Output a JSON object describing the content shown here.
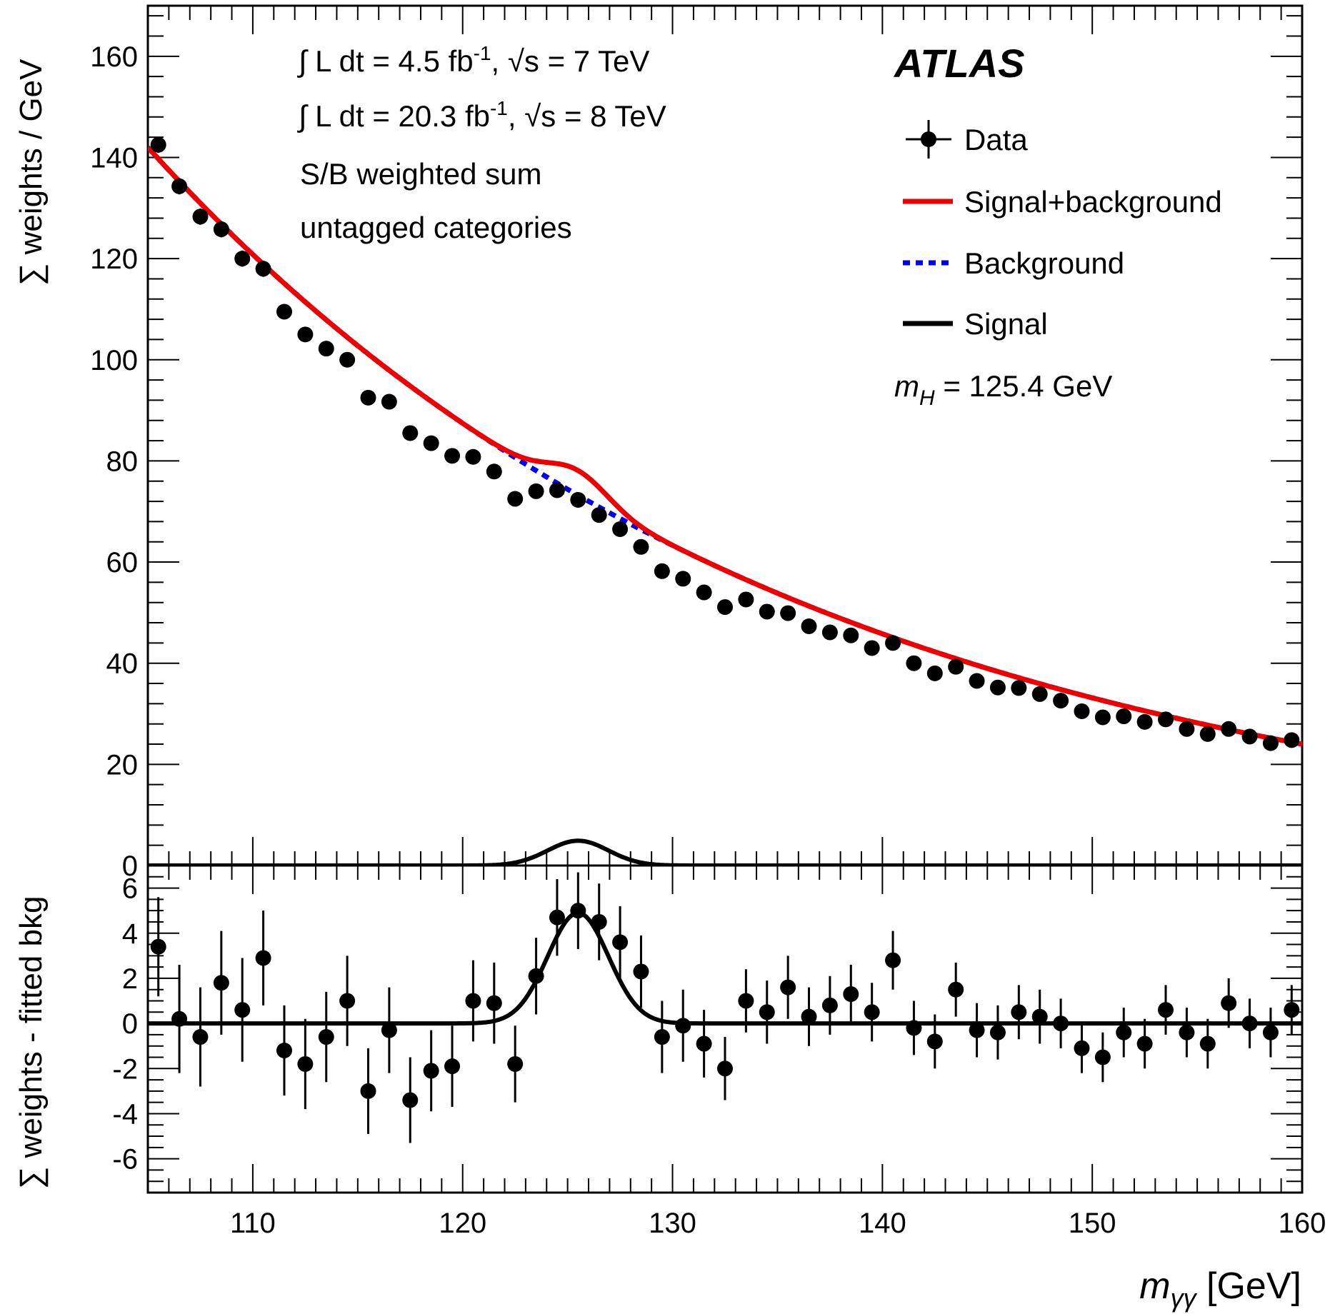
{
  "chart_data": {
    "type": "scatter",
    "experiment": "ATLAS",
    "annotations": [
      {
        "lumi": "∫ L dt = 4.5 fb",
        "sup": "-1",
        "energy": ", √s = 7 TeV"
      },
      {
        "lumi": "∫ L dt = 20.3 fb",
        "sup": "-1",
        "energy": ", √s = 8 TeV"
      }
    ],
    "note1": "S/B weighted sum",
    "note2": "untagged categories",
    "mass_label": "m",
    "mass_sub": "H",
    "mass_value": " = 125.4 GeV",
    "legend": [
      {
        "label": "Data",
        "style": "marker"
      },
      {
        "label": "Signal+background",
        "style": "solid",
        "color": "#ee0000"
      },
      {
        "label": "Background",
        "style": "dashed",
        "color": "#0000ee"
      },
      {
        "label": "Signal",
        "style": "solid",
        "color": "#000000"
      }
    ],
    "xlabel_main": "m",
    "xlabel_sub": "γγ",
    "xlabel_unit": " [GeV]",
    "xlim": [
      105,
      160
    ],
    "xticks": [
      110,
      120,
      130,
      140,
      150,
      160
    ],
    "top": {
      "ylabel": "∑ weights / GeV",
      "ylim": [
        0,
        170
      ],
      "yticks": [
        0,
        20,
        40,
        60,
        80,
        100,
        120,
        140,
        160
      ],
      "x": [
        105.5,
        106.5,
        107.5,
        108.5,
        109.5,
        110.5,
        111.5,
        112.5,
        113.5,
        114.5,
        115.5,
        116.5,
        117.5,
        118.5,
        119.5,
        120.5,
        121.5,
        122.5,
        123.5,
        124.5,
        125.5,
        126.5,
        127.5,
        128.5,
        129.5,
        130.5,
        131.5,
        132.5,
        133.5,
        134.5,
        135.5,
        136.5,
        137.5,
        138.5,
        139.5,
        140.5,
        141.5,
        142.5,
        143.5,
        144.5,
        145.5,
        146.5,
        147.5,
        148.5,
        149.5,
        150.5,
        151.5,
        152.5,
        153.5,
        154.5,
        155.5,
        156.5,
        157.5,
        158.5,
        159.5
      ],
      "y": [
        142.5,
        134.3,
        128.3,
        125.8,
        120,
        118,
        109.5,
        105,
        102.2,
        100,
        92.5,
        91.7,
        85.5,
        83.5,
        81,
        80.8,
        77.9,
        72.5,
        74,
        74.2,
        72.3,
        69.3,
        66.5,
        63,
        58.2,
        56.7,
        54,
        51.1,
        52.6,
        50.2,
        49.9,
        47.3,
        46.1,
        45.5,
        43,
        44,
        40,
        38,
        39.3,
        36.5,
        35.2,
        35.1,
        33.9,
        32.6,
        30.5,
        29.3,
        29.5,
        28.4,
        28.9,
        27,
        26,
        27,
        25.5,
        24.2,
        24.8
      ],
      "yerr": [
        1.6,
        1.6,
        1.6,
        1.6,
        1.6,
        1.6,
        1.5,
        1.5,
        1.5,
        1.5,
        1.5,
        1.5,
        1.4,
        1.4,
        1.4,
        1.4,
        1.4,
        1.4,
        1.4,
        1.4,
        1.4,
        1.4,
        1.3,
        1.3,
        1.3,
        1.3,
        1.3,
        1.3,
        1.3,
        1.3,
        1.3,
        1.3,
        1.2,
        1.2,
        1.2,
        1.2,
        1.2,
        1.2,
        1.2,
        1.2,
        1.2,
        1.2,
        1.2,
        1.2,
        1.2,
        1.1,
        1.1,
        1.1,
        1.1,
        1.1,
        1.1,
        1.1,
        1.1,
        1.1,
        1.1
      ],
      "background_model": {
        "form": "exponential",
        "anchors": [
          [
            105,
            142
          ],
          [
            160,
            24
          ]
        ]
      },
      "signal_model": {
        "form": "gaussian",
        "mean": 125.5,
        "sigma": 1.45,
        "amplitude": 4.9
      }
    },
    "bottom": {
      "ylabel": "∑ weights - fitted bkg",
      "ylim": [
        -7.5,
        7
      ],
      "yticks": [
        -6,
        -4,
        -2,
        0,
        2,
        4,
        6
      ],
      "x": [
        105.5,
        106.5,
        107.5,
        108.5,
        109.5,
        110.5,
        111.5,
        112.5,
        113.5,
        114.5,
        115.5,
        116.5,
        117.5,
        118.5,
        119.5,
        120.5,
        121.5,
        122.5,
        123.5,
        124.5,
        125.5,
        126.5,
        127.5,
        128.5,
        129.5,
        130.5,
        131.5,
        132.5,
        133.5,
        134.5,
        135.5,
        136.5,
        137.5,
        138.5,
        139.5,
        140.5,
        141.5,
        142.5,
        143.5,
        144.5,
        145.5,
        146.5,
        147.5,
        148.5,
        149.5,
        150.5,
        151.5,
        152.5,
        153.5,
        154.5,
        155.5,
        156.5,
        157.5,
        158.5,
        159.5
      ],
      "y": [
        3.4,
        0.2,
        -0.6,
        1.8,
        0.6,
        2.9,
        -1.2,
        -1.8,
        -0.6,
        1,
        -3,
        -0.3,
        -3.4,
        -2.1,
        -1.9,
        1,
        0.9,
        -1.8,
        2.1,
        4.7,
        5,
        4.5,
        3.6,
        2.3,
        -0.6,
        -0.1,
        -0.9,
        -2,
        1,
        0.5,
        1.6,
        0.3,
        0.8,
        1.3,
        0.5,
        2.8,
        -0.2,
        -0.8,
        1.5,
        -0.3,
        -0.4,
        0.5,
        0.3,
        0,
        -1.1,
        -1.5,
        -0.4,
        -0.9,
        0.6,
        -0.4,
        -0.9,
        0.9,
        0,
        -0.4,
        0.6
      ],
      "yerr": [
        2.2,
        2.4,
        2.2,
        2.3,
        2.3,
        2.1,
        2,
        2,
        2,
        2,
        1.9,
        1.9,
        1.9,
        1.8,
        1.8,
        1.8,
        1.8,
        1.7,
        1.7,
        1.7,
        1.7,
        1.7,
        1.6,
        1.6,
        1.6,
        1.6,
        1.5,
        1.4,
        1.4,
        1.4,
        1.4,
        1.3,
        1.3,
        1.3,
        1.3,
        1.3,
        1.2,
        1.2,
        1.2,
        1.2,
        1.2,
        1.2,
        1.2,
        1.1,
        1.1,
        1.1,
        1.1,
        1.1,
        1.1,
        1.1,
        1.1,
        1.1,
        1.1,
        1.1,
        1.1
      ]
    }
  }
}
